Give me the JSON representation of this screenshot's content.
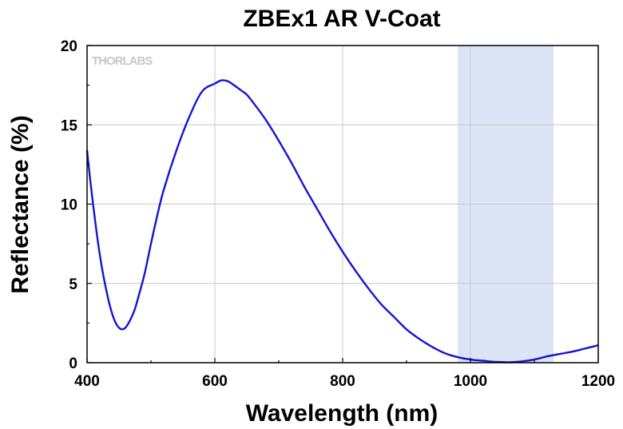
{
  "chart_data": {
    "type": "line",
    "title": "ZBEx1 AR V-Coat",
    "xlabel": "Wavelength (nm)",
    "ylabel": "Reflectance (%)",
    "xlim": [
      400,
      1200
    ],
    "ylim": [
      0,
      20
    ],
    "x_ticks": [
      400,
      600,
      800,
      1000,
      1200
    ],
    "x_tick_labels": [
      "400",
      "600",
      "800",
      "1000",
      "1200"
    ],
    "y_ticks": [
      0,
      5,
      10,
      15,
      20
    ],
    "y_tick_labels": [
      "0",
      "5",
      "10",
      "15",
      "20"
    ],
    "grid": true,
    "legend": "none",
    "highlight_band": {
      "x_start": 980,
      "x_end": 1130,
      "color": "#dce5f6"
    },
    "watermark": "THORLABS",
    "series": [
      {
        "color": "#1414d2",
        "x": [
          400,
          405,
          410,
          415,
          420,
          425,
          430,
          435,
          440,
          445,
          450,
          455,
          460,
          465,
          470,
          475,
          480,
          490,
          500,
          510,
          520,
          540,
          560,
          580,
          600,
          610,
          620,
          630,
          640,
          650,
          660,
          680,
          700,
          720,
          740,
          760,
          780,
          800,
          820,
          840,
          860,
          880,
          900,
          920,
          940,
          960,
          980,
          1000,
          1020,
          1040,
          1060,
          1080,
          1100,
          1120,
          1140,
          1160,
          1180,
          1200
        ],
        "y": [
          13.4,
          11.5,
          9.8,
          8.2,
          6.8,
          5.6,
          4.6,
          3.7,
          3.0,
          2.5,
          2.2,
          2.1,
          2.2,
          2.5,
          2.9,
          3.4,
          4.1,
          5.6,
          7.5,
          9.3,
          10.9,
          13.4,
          15.5,
          17.1,
          17.6,
          17.8,
          17.75,
          17.5,
          17.2,
          16.9,
          16.4,
          15.3,
          14.0,
          12.6,
          11.1,
          9.7,
          8.3,
          7.0,
          5.8,
          4.7,
          3.7,
          2.9,
          2.1,
          1.5,
          1.0,
          0.6,
          0.35,
          0.2,
          0.12,
          0.05,
          0.03,
          0.08,
          0.2,
          0.4,
          0.55,
          0.7,
          0.9,
          1.1
        ]
      }
    ]
  }
}
